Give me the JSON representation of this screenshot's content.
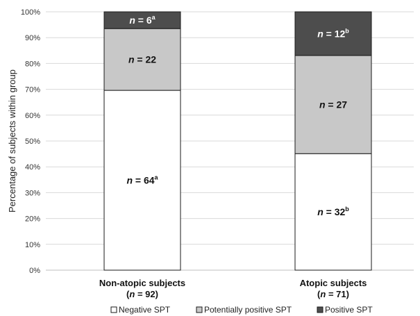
{
  "chart_data": {
    "type": "bar",
    "stacked": true,
    "ylabel": "Percentage of subjects within group",
    "ylim": [
      0,
      100
    ],
    "yticks": [
      0,
      10,
      20,
      30,
      40,
      50,
      60,
      70,
      80,
      90,
      100
    ],
    "ytick_suffix": "%",
    "grid": true,
    "legend_position": "bottom",
    "categories": [
      {
        "name": "Non-atopic subjects",
        "n_prefix": "(",
        "n_value": "92",
        "n_suffix": ")"
      },
      {
        "name": "Atopic subjects",
        "n_prefix": "(",
        "n_value": "71",
        "n_suffix": ")"
      }
    ],
    "series": [
      {
        "name": "Negative SPT",
        "color": "#ffffff",
        "values": [
          69.6,
          45.1
        ],
        "counts": [
          "64",
          "32"
        ],
        "superscripts": [
          "a",
          "b"
        ]
      },
      {
        "name": "Potentially positive SPT",
        "color": "#c8c8c8",
        "values": [
          23.9,
          38.0
        ],
        "counts": [
          "22",
          "27"
        ],
        "superscripts": [
          "",
          ""
        ]
      },
      {
        "name": "Positive SPT",
        "color": "#4d4d4d",
        "values": [
          6.5,
          16.9
        ],
        "counts": [
          "6",
          "12"
        ],
        "superscripts": [
          "a",
          "b"
        ]
      }
    ]
  }
}
